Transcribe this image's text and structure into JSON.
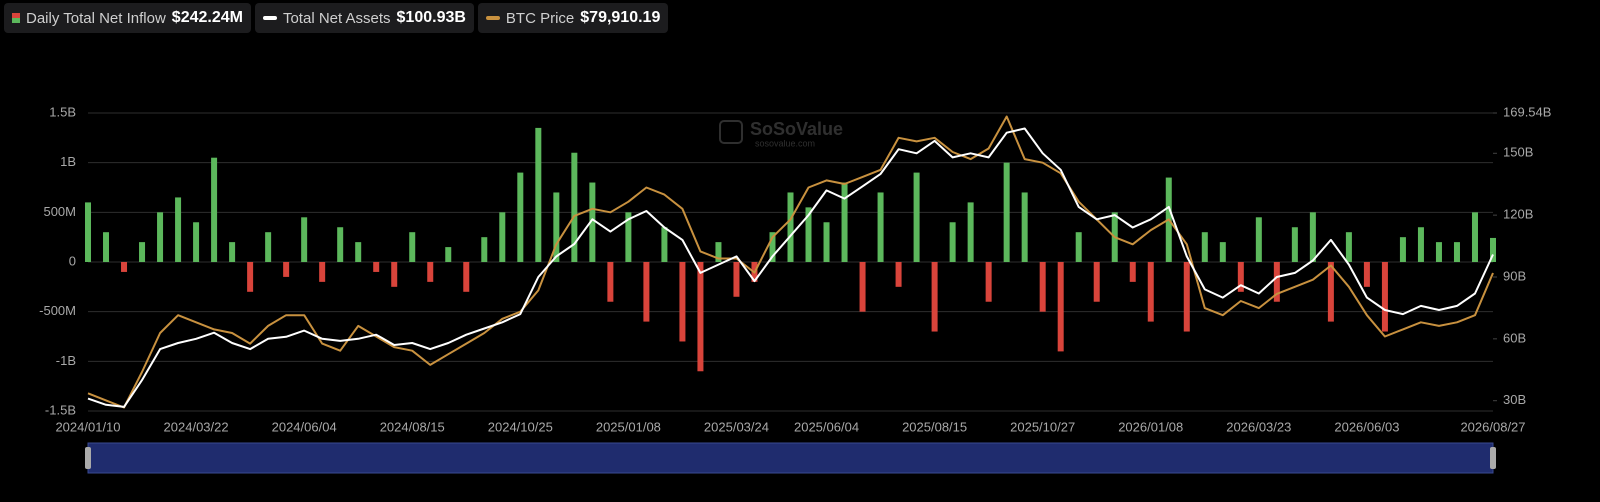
{
  "chart_data": {
    "type": "bar-line",
    "watermark": "SoSoValue",
    "watermark_sub": "sosovalue.com",
    "categories": [
      "2024/01/10",
      null,
      null,
      null,
      null,
      null,
      "2024/03/22",
      null,
      null,
      null,
      null,
      null,
      "2024/06/04",
      null,
      null,
      null,
      null,
      null,
      "2024/08/15",
      null,
      null,
      null,
      null,
      null,
      "2024/10/25",
      null,
      null,
      null,
      null,
      null,
      "2025/01/08",
      null,
      null,
      null,
      null,
      null,
      "2025/03/24",
      null,
      null,
      null,
      null,
      "2025/06/04",
      null,
      null,
      null,
      null,
      null,
      "2025/08/15",
      null,
      null,
      null,
      null,
      null,
      "2025/10/27",
      null,
      null,
      null,
      null,
      null,
      "2026/01/08",
      null,
      null,
      null,
      null,
      null,
      "2026/03/23",
      null,
      null,
      null,
      null,
      null,
      "2026/06/03",
      null,
      null,
      null,
      null,
      null,
      null,
      "2026/08/27"
    ],
    "ylim": [
      -1500,
      1500
    ],
    "yticks": [
      {
        "value": -1500,
        "label": "-1.5B"
      },
      {
        "value": -1000,
        "label": "-1B"
      },
      {
        "value": -500,
        "label": "-500M"
      },
      0,
      {
        "value": 500,
        "label": "500M"
      },
      {
        "value": 1000,
        "label": "1B"
      },
      {
        "value": 1500,
        "label": "1.5B"
      }
    ],
    "y2lim": [
      25,
      169.54
    ],
    "y2ticks": [
      {
        "value": 30,
        "label": "30B"
      },
      {
        "value": 60,
        "label": "60B"
      },
      {
        "value": 90,
        "label": "90B"
      },
      {
        "value": 120,
        "label": "120B"
      },
      {
        "value": 150,
        "label": "150B"
      },
      {
        "value": 169.54,
        "label": "169.54B"
      }
    ],
    "y3lim": [
      41000,
      125000
    ],
    "grid": true,
    "series": [
      {
        "name": "Daily Total Net Inflow",
        "current": "$242.24M",
        "type": "bar",
        "color": "#5cb85c",
        "negative_color": "#d9443b",
        "values": [
          600,
          300,
          -100,
          200,
          500,
          650,
          400,
          1050,
          200,
          -300,
          300,
          -150,
          450,
          -200,
          350,
          200,
          -100,
          -250,
          300,
          -200,
          150,
          -300,
          250,
          500,
          900,
          1350,
          700,
          1100,
          800,
          -400,
          500,
          -600,
          350,
          -800,
          -1100,
          200,
          -350,
          -200,
          300,
          700,
          550,
          400,
          800,
          -500,
          700,
          -250,
          900,
          -700,
          400,
          600,
          -400,
          1000,
          700,
          -500,
          -900,
          300,
          -400,
          500,
          -200,
          -600,
          850,
          -700,
          300,
          200,
          -300,
          450,
          -400,
          350,
          500,
          -600,
          300,
          -250,
          -700,
          250,
          350,
          200,
          200,
          500,
          242.24
        ]
      },
      {
        "name": "Total Net Assets",
        "current": "$100.93B",
        "type": "line",
        "axis": "y2",
        "color": "#ffffff",
        "values": [
          31,
          28,
          27,
          40,
          55,
          58,
          60,
          63,
          58,
          55,
          60,
          61,
          64,
          60,
          59,
          60,
          62,
          57,
          58,
          55,
          58,
          62,
          65,
          68,
          72,
          90,
          100,
          106,
          118,
          112,
          118,
          122,
          114,
          108,
          92,
          96,
          100,
          88,
          100,
          110,
          120,
          132,
          128,
          134,
          140,
          152,
          150,
          156,
          148,
          150,
          148,
          160,
          162,
          150,
          142,
          124,
          118,
          120,
          114,
          118,
          124,
          100,
          84,
          80,
          86,
          82,
          90,
          92,
          98,
          108,
          96,
          80,
          74,
          72,
          76,
          74,
          76,
          82,
          100.93
        ]
      },
      {
        "name": "BTC Price",
        "current": "$79,910.19",
        "type": "line",
        "axis": "y3",
        "color": "#c8913f",
        "values": [
          46000,
          44000,
          42000,
          52000,
          63000,
          68000,
          66000,
          64000,
          63000,
          60000,
          65000,
          68000,
          68000,
          60000,
          58000,
          65000,
          62000,
          59000,
          58000,
          54000,
          57000,
          60000,
          63000,
          67000,
          69000,
          75000,
          88000,
          96000,
          98000,
          97000,
          100000,
          104000,
          102000,
          98000,
          86000,
          84000,
          84000,
          80000,
          90000,
          95000,
          104000,
          106000,
          105000,
          107000,
          109000,
          118000,
          117000,
          118000,
          114000,
          112000,
          115000,
          124000,
          112000,
          111000,
          108000,
          100000,
          95000,
          90000,
          88000,
          92000,
          95000,
          88000,
          70000,
          68000,
          72000,
          70000,
          74000,
          76000,
          78000,
          82000,
          76000,
          68000,
          62000,
          64000,
          66000,
          65000,
          66000,
          68000,
          79910.19
        ]
      }
    ]
  }
}
